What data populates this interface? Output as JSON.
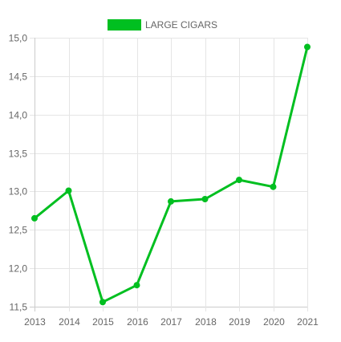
{
  "chart_data": {
    "type": "line",
    "categories": [
      "2013",
      "2014",
      "2015",
      "2016",
      "2017",
      "2018",
      "2019",
      "2020",
      "2021"
    ],
    "series": [
      {
        "name": "LARGE CIGARS",
        "values": [
          12.65,
          13.01,
          11.56,
          11.78,
          12.87,
          12.9,
          13.15,
          13.06,
          14.88
        ],
        "color": "#00bf20"
      }
    ],
    "yticks": [
      "15,0",
      "14,5",
      "14,0",
      "13,5",
      "13,0",
      "12,5",
      "12,0",
      "11,5"
    ],
    "ylim": [
      11.5,
      15.0
    ],
    "grid": true,
    "legend_position": "top"
  }
}
